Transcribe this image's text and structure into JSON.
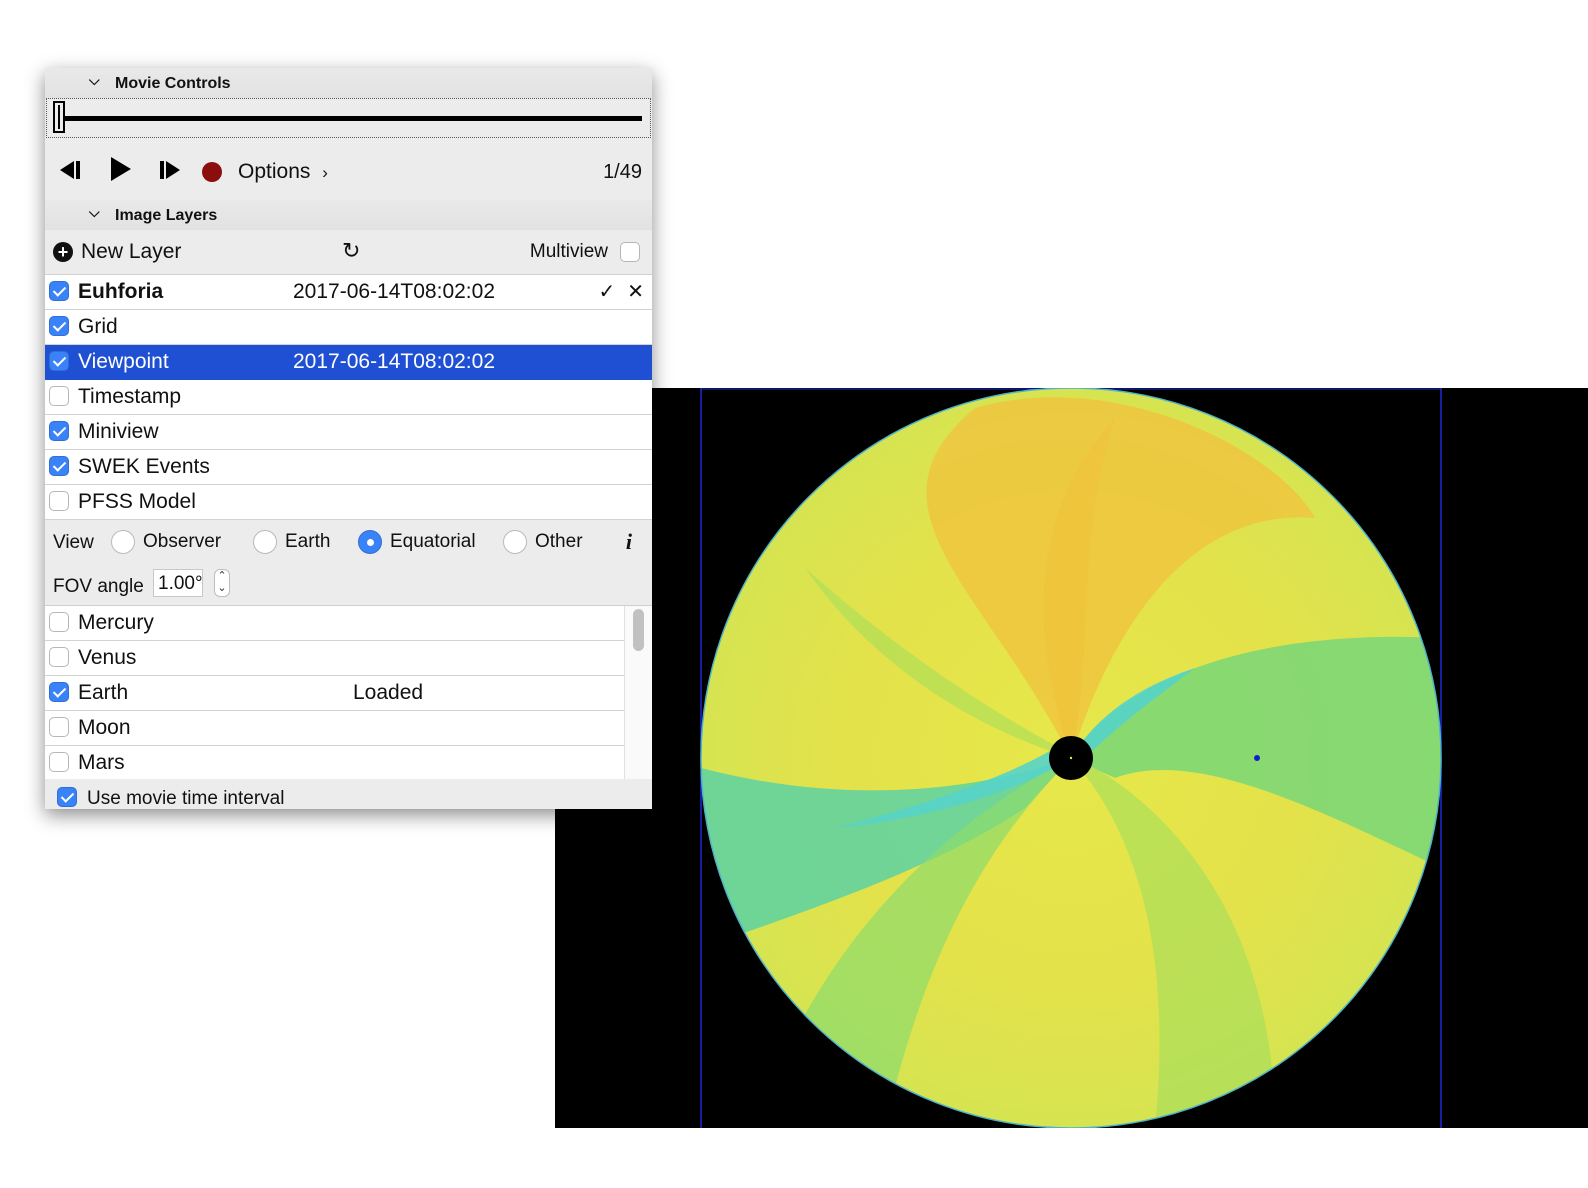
{
  "movie_controls": {
    "title": "Movie Controls",
    "frame_counter": "1/49",
    "options_label": "Options",
    "slider_frame": 1,
    "slider_total": 49
  },
  "image_layers": {
    "title": "Image Layers",
    "new_layer_label": "New Layer",
    "multiview_label": "Multiview",
    "layers": [
      {
        "name": "Euhforia",
        "time": "2017-06-14T08:02:02",
        "checked": true,
        "bold": true,
        "actions": true
      },
      {
        "name": "Grid",
        "time": "",
        "checked": true
      },
      {
        "name": "Viewpoint",
        "time": "2017-06-14T08:02:02",
        "checked": true,
        "selected": true
      },
      {
        "name": "Timestamp",
        "time": "",
        "checked": false
      },
      {
        "name": "Miniview",
        "time": "",
        "checked": true
      },
      {
        "name": "SWEK Events",
        "time": "",
        "checked": true
      },
      {
        "name": "PFSS Model",
        "time": "",
        "checked": false
      }
    ]
  },
  "view": {
    "label": "View",
    "options": [
      "Observer",
      "Earth",
      "Equatorial",
      "Other"
    ],
    "selected": "Equatorial",
    "fov_label": "FOV angle",
    "fov_value": "1.00°"
  },
  "objects": [
    {
      "name": "Mercury",
      "checked": false,
      "status": ""
    },
    {
      "name": "Venus",
      "checked": false,
      "status": ""
    },
    {
      "name": "Earth",
      "checked": true,
      "status": "Loaded"
    },
    {
      "name": "Moon",
      "checked": false,
      "status": ""
    },
    {
      "name": "Mars",
      "checked": false,
      "status": ""
    }
  ],
  "use_movie_interval": {
    "label": "Use movie time interval",
    "checked": true
  },
  "icons": {
    "collapse": "chevron-down-icon",
    "prev": "step-back-icon",
    "play": "play-icon",
    "next": "step-forward-icon",
    "record": "record-icon",
    "new_layer": "plus-circle-icon",
    "refresh": "refresh-icon",
    "info": "info-icon",
    "accept": "checkmark-icon",
    "remove": "close-icon"
  },
  "colors": {
    "selection": "#1f4fd2",
    "checkbox": "#3a82f7",
    "record": "#8b0e0e",
    "canvas": "#000000"
  }
}
